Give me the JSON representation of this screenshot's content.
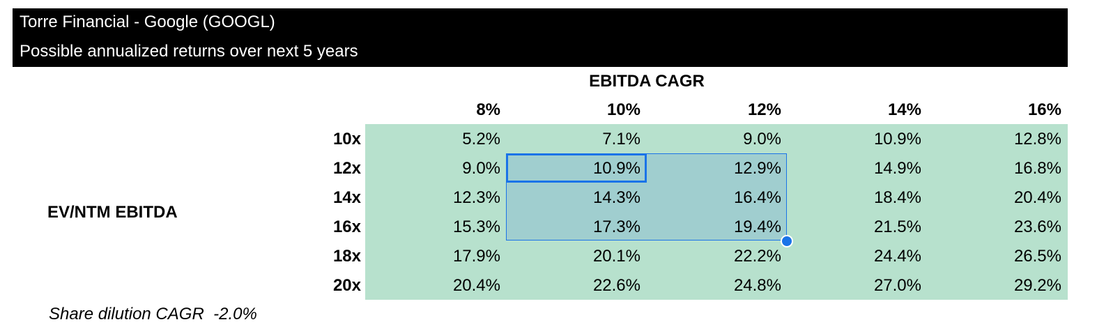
{
  "header": {
    "title": "Torre Financial - Google (GOOGL)",
    "subtitle": "Possible annualized returns over next 5 years"
  },
  "table": {
    "column_axis_label": "EBITDA CAGR",
    "row_axis_label": "EV/NTM EBITDA",
    "columns": [
      "8%",
      "10%",
      "12%",
      "14%",
      "16%"
    ],
    "rows": [
      "10x",
      "12x",
      "14x",
      "16x",
      "18x",
      "20x"
    ],
    "values": [
      [
        "5.2%",
        "7.1%",
        "9.0%",
        "10.9%",
        "12.8%"
      ],
      [
        "9.0%",
        "10.9%",
        "12.9%",
        "14.9%",
        "16.8%"
      ],
      [
        "12.3%",
        "14.3%",
        "16.4%",
        "18.4%",
        "20.4%"
      ],
      [
        "15.3%",
        "17.3%",
        "19.4%",
        "21.5%",
        "23.6%"
      ],
      [
        "17.9%",
        "20.1%",
        "22.2%",
        "24.4%",
        "26.5%"
      ],
      [
        "20.4%",
        "22.6%",
        "24.8%",
        "27.0%",
        "29.2%"
      ]
    ],
    "fill_color": "#b7e1cd",
    "selection_color": "#1a73e8"
  },
  "footnote": {
    "label": "Share dilution CAGR",
    "value": "-2.0%"
  }
}
